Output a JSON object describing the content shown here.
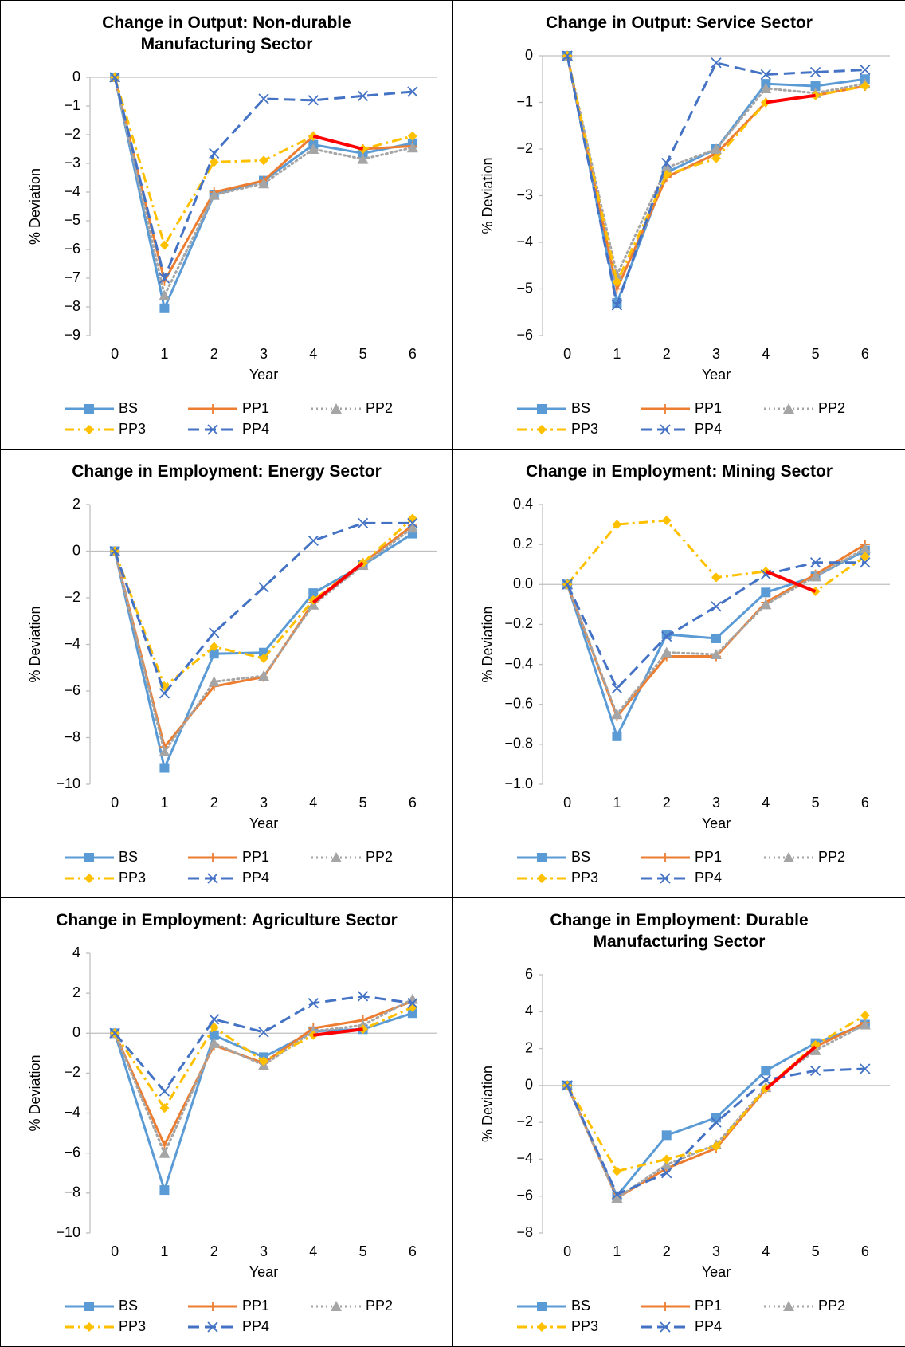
{
  "chart_data": [
    {
      "type": "line",
      "title": "Change in Output: Non-durable Manufacturing Sector",
      "y_label": "% Deviation",
      "x_label": "Year",
      "categories": [
        "0",
        "1",
        "2",
        "3",
        "4",
        "5",
        "6"
      ],
      "ylim": [
        -9,
        0
      ],
      "yticks": [
        {
          "value": -9,
          "label": "−9"
        },
        {
          "value": -8,
          "label": "−8"
        },
        {
          "value": -7,
          "label": "−7"
        },
        {
          "value": -6,
          "label": "−6"
        },
        {
          "value": -5,
          "label": "−5"
        },
        {
          "value": -4,
          "label": "−4"
        },
        {
          "value": -3,
          "label": "−3"
        },
        {
          "value": -2,
          "label": "−2"
        },
        {
          "value": -1,
          "label": "−1"
        },
        0
      ],
      "series": [
        {
          "name": "BS",
          "color": "#5b9bd5",
          "dash": "solid",
          "marker": "square",
          "values": [
            0,
            -8.05,
            -4.1,
            -3.6,
            -2.35,
            -2.65,
            -2.3
          ]
        },
        {
          "name": "PP1",
          "color": "#ed7d31",
          "dash": "solid",
          "marker": "plus",
          "values": [
            0,
            -7.1,
            -4.0,
            -3.6,
            -2.05,
            -2.5,
            -2.4
          ]
        },
        {
          "name": "PP2",
          "color": "#a5a5a5",
          "dash": "dot",
          "marker": "triangle",
          "values": [
            0,
            -7.6,
            -4.1,
            -3.7,
            -2.5,
            -2.85,
            -2.45
          ]
        },
        {
          "name": "PP3",
          "color": "#ffc000",
          "dash": "dashdot",
          "marker": "diamond",
          "values": [
            0,
            -5.85,
            -2.95,
            -2.9,
            -2.05,
            -2.5,
            -2.05
          ]
        },
        {
          "name": "PP4",
          "color": "#4472c4",
          "dash": "dash",
          "marker": "x",
          "values": [
            0,
            -7.0,
            -2.65,
            -0.75,
            -0.8,
            -0.65,
            -0.5
          ]
        }
      ],
      "highlight": {
        "series": 1,
        "from": 4,
        "color": "#ff0000"
      }
    },
    {
      "type": "line",
      "title": "Change in Output: Service Sector",
      "y_label": "% Deviation",
      "x_label": "Year",
      "categories": [
        "0",
        "1",
        "2",
        "3",
        "4",
        "5",
        "6"
      ],
      "ylim": [
        -6,
        0
      ],
      "yticks": [
        {
          "value": -6,
          "label": "−6"
        },
        {
          "value": -5,
          "label": "−5"
        },
        {
          "value": -4,
          "label": "−4"
        },
        {
          "value": -3,
          "label": "−3"
        },
        {
          "value": -2,
          "label": "−2"
        },
        {
          "value": -1,
          "label": "−1"
        },
        0
      ],
      "series": [
        {
          "name": "BS",
          "color": "#5b9bd5",
          "dash": "solid",
          "marker": "square",
          "values": [
            0,
            -5.3,
            -2.5,
            -2.0,
            -0.6,
            -0.65,
            -0.5
          ]
        },
        {
          "name": "PP1",
          "color": "#ed7d31",
          "dash": "solid",
          "marker": "plus",
          "values": [
            0,
            -5.0,
            -2.6,
            -2.1,
            -1.0,
            -0.85,
            -0.65
          ]
        },
        {
          "name": "PP2",
          "color": "#a5a5a5",
          "dash": "dot",
          "marker": "triangle",
          "values": [
            0,
            -4.7,
            -2.4,
            -2.0,
            -0.7,
            -0.8,
            -0.6
          ]
        },
        {
          "name": "PP3",
          "color": "#ffc000",
          "dash": "dashdot",
          "marker": "diamond",
          "values": [
            0,
            -4.85,
            -2.55,
            -2.2,
            -1.0,
            -0.85,
            -0.65
          ]
        },
        {
          "name": "PP4",
          "color": "#4472c4",
          "dash": "dash",
          "marker": "x",
          "values": [
            0,
            -5.35,
            -2.3,
            -0.15,
            -0.4,
            -0.35,
            -0.3
          ]
        }
      ],
      "highlight": {
        "series": 1,
        "from": 4,
        "color": "#ff0000"
      }
    },
    {
      "type": "line",
      "title": "Change in Employment: Energy Sector",
      "y_label": "% Deviation",
      "x_label": "Year",
      "categories": [
        "0",
        "1",
        "2",
        "3",
        "4",
        "5",
        "6"
      ],
      "ylim": [
        -10,
        2
      ],
      "yticks": [
        {
          "value": -10,
          "label": "−10"
        },
        {
          "value": -8,
          "label": "−8"
        },
        {
          "value": -6,
          "label": "−6"
        },
        {
          "value": -4,
          "label": "−4"
        },
        {
          "value": -2,
          "label": "−2"
        },
        0,
        2
      ],
      "series": [
        {
          "name": "BS",
          "color": "#5b9bd5",
          "dash": "solid",
          "marker": "square",
          "values": [
            0,
            -9.3,
            -4.4,
            -4.35,
            -1.8,
            -0.6,
            0.75
          ]
        },
        {
          "name": "PP1",
          "color": "#ed7d31",
          "dash": "solid",
          "marker": "plus",
          "values": [
            0,
            -8.4,
            -5.8,
            -5.4,
            -2.2,
            -0.5,
            1.1
          ]
        },
        {
          "name": "PP2",
          "color": "#a5a5a5",
          "dash": "dot",
          "marker": "triangle",
          "values": [
            0,
            -8.6,
            -5.6,
            -5.35,
            -2.3,
            -0.6,
            1.0
          ]
        },
        {
          "name": "PP3",
          "color": "#ffc000",
          "dash": "dashdot",
          "marker": "diamond",
          "values": [
            0,
            -5.8,
            -4.1,
            -4.6,
            -2.1,
            -0.5,
            1.4
          ]
        },
        {
          "name": "PP4",
          "color": "#4472c4",
          "dash": "dash",
          "marker": "x",
          "values": [
            0,
            -6.1,
            -3.5,
            -1.55,
            0.45,
            1.2,
            1.2
          ]
        }
      ],
      "highlight": {
        "series": 1,
        "from": 4,
        "color": "#ff0000"
      }
    },
    {
      "type": "line",
      "title": "Change in Employment: Mining Sector",
      "y_label": "% Deviation",
      "x_label": "Year",
      "categories": [
        "0",
        "1",
        "2",
        "3",
        "4",
        "5",
        "6"
      ],
      "ylim": [
        -1,
        0.4
      ],
      "yticks": [
        {
          "value": -1,
          "label": "−1.0"
        },
        {
          "value": -0.8,
          "label": "−0.8"
        },
        {
          "value": -0.6,
          "label": "−0.6"
        },
        {
          "value": -0.4,
          "label": "−0.4"
        },
        {
          "value": -0.2,
          "label": "−0.2"
        },
        {
          "value": 0,
          "label": "0.0"
        },
        0.2,
        0.4
      ],
      "series": [
        {
          "name": "BS",
          "color": "#5b9bd5",
          "dash": "solid",
          "marker": "square",
          "values": [
            0,
            -0.76,
            -0.25,
            -0.27,
            -0.04,
            0.04,
            0.17
          ]
        },
        {
          "name": "PP1",
          "color": "#ed7d31",
          "dash": "solid",
          "marker": "plus",
          "values": [
            0,
            -0.66,
            -0.36,
            -0.36,
            -0.09,
            0.05,
            0.2
          ]
        },
        {
          "name": "PP2",
          "color": "#a5a5a5",
          "dash": "dot",
          "marker": "triangle",
          "values": [
            0,
            -0.65,
            -0.34,
            -0.35,
            -0.1,
            0.04,
            0.18
          ]
        },
        {
          "name": "PP3",
          "color": "#ffc000",
          "dash": "dashdot",
          "marker": "diamond",
          "values": [
            0,
            0.3,
            0.32,
            0.035,
            0.065,
            -0.035,
            0.14
          ]
        },
        {
          "name": "PP4",
          "color": "#4472c4",
          "dash": "dash",
          "marker": "x",
          "values": [
            0,
            -0.52,
            -0.26,
            -0.11,
            0.05,
            0.11,
            0.11
          ]
        }
      ],
      "highlight": {
        "series": 3,
        "from": 4,
        "color": "#ff0000"
      }
    },
    {
      "type": "line",
      "title": "Change in Employment: Agriculture Sector",
      "y_label": "% Deviation",
      "x_label": "Year",
      "categories": [
        "0",
        "1",
        "2",
        "3",
        "4",
        "5",
        "6"
      ],
      "ylim": [
        -10,
        4
      ],
      "yticks": [
        {
          "value": -10,
          "label": "−10"
        },
        {
          "value": -8,
          "label": "−8"
        },
        {
          "value": -6,
          "label": "−6"
        },
        {
          "value": -4,
          "label": "−4"
        },
        {
          "value": -2,
          "label": "−2"
        },
        0,
        2,
        4
      ],
      "series": [
        {
          "name": "BS",
          "color": "#5b9bd5",
          "dash": "solid",
          "marker": "square",
          "values": [
            0,
            -7.85,
            -0.1,
            -1.2,
            0.1,
            0.2,
            1.0
          ]
        },
        {
          "name": "PP1",
          "color": "#ed7d31",
          "dash": "solid",
          "marker": "plus",
          "values": [
            0,
            -5.6,
            -0.6,
            -1.5,
            0.25,
            0.65,
            1.6
          ]
        },
        {
          "name": "PP2",
          "color": "#a5a5a5",
          "dash": "dot",
          "marker": "triangle",
          "values": [
            0,
            -6.0,
            -0.5,
            -1.6,
            0.1,
            0.4,
            1.7
          ]
        },
        {
          "name": "PP3",
          "color": "#ffc000",
          "dash": "dashdot",
          "marker": "diamond",
          "values": [
            0,
            -3.75,
            0.3,
            -1.4,
            -0.1,
            0.2,
            1.3
          ]
        },
        {
          "name": "PP4",
          "color": "#4472c4",
          "dash": "dash",
          "marker": "x",
          "values": [
            0,
            -2.9,
            0.7,
            0.05,
            1.5,
            1.85,
            1.5
          ]
        }
      ],
      "highlight": {
        "series": 3,
        "from": 4,
        "color": "#ff0000"
      }
    },
    {
      "type": "line",
      "title": "Change in Employment: Durable Manufacturing Sector",
      "y_label": "% Deviation",
      "x_label": "Year",
      "categories": [
        "0",
        "1",
        "2",
        "3",
        "4",
        "5",
        "6"
      ],
      "ylim": [
        -8,
        6
      ],
      "yticks": [
        {
          "value": -8,
          "label": "−8"
        },
        {
          "value": -6,
          "label": "−6"
        },
        {
          "value": -4,
          "label": "−4"
        },
        {
          "value": -2,
          "label": "−2"
        },
        0,
        2,
        4,
        6
      ],
      "series": [
        {
          "name": "BS",
          "color": "#5b9bd5",
          "dash": "solid",
          "marker": "square",
          "values": [
            0,
            -6.0,
            -2.7,
            -1.75,
            0.8,
            2.3,
            3.3
          ]
        },
        {
          "name": "PP1",
          "color": "#ed7d31",
          "dash": "solid",
          "marker": "plus",
          "values": [
            0,
            -6.1,
            -4.5,
            -3.4,
            -0.2,
            2.1,
            3.4
          ]
        },
        {
          "name": "PP2",
          "color": "#a5a5a5",
          "dash": "dot",
          "marker": "triangle",
          "values": [
            0,
            -6.1,
            -4.3,
            -3.2,
            -0.1,
            1.9,
            3.3
          ]
        },
        {
          "name": "PP3",
          "color": "#ffc000",
          "dash": "dashdot",
          "marker": "diamond",
          "values": [
            0,
            -4.65,
            -4.0,
            -3.3,
            -0.15,
            2.2,
            3.8
          ]
        },
        {
          "name": "PP4",
          "color": "#4472c4",
          "dash": "dash",
          "marker": "x",
          "values": [
            0,
            -5.9,
            -4.75,
            -2.0,
            0.3,
            0.8,
            0.9
          ]
        }
      ],
      "highlight": {
        "series": 1,
        "from": 4,
        "color": "#ff0000"
      }
    }
  ]
}
